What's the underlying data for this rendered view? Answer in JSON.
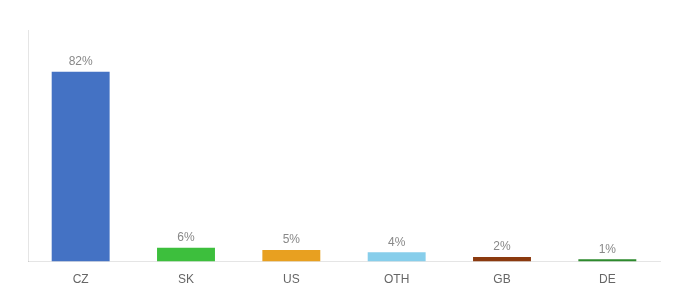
{
  "chart_data": {
    "type": "bar",
    "categories": [
      "CZ",
      "SK",
      "US",
      "OTH",
      "GB",
      "DE"
    ],
    "values": [
      82,
      6,
      5,
      4,
      2,
      1
    ],
    "value_labels": [
      "82%",
      "6%",
      "5%",
      "4%",
      "2%",
      "1%"
    ],
    "colors": [
      "#4472c4",
      "#3dbf3d",
      "#e8a020",
      "#87ceeb",
      "#8b3a0f",
      "#2d8a2d"
    ],
    "ylim": [
      0,
      100
    ],
    "grid": false,
    "legend": false,
    "data_labels": true,
    "tick_labels": "x"
  }
}
